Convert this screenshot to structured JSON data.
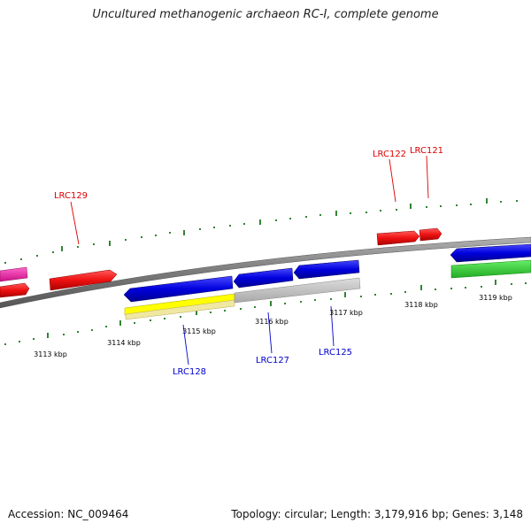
{
  "title": "Uncultured methanogenic archaeon RC-I, complete genome",
  "footer": {
    "accession": "Accession: NC_009464",
    "topology": "Topology: circular; Length: 3,179,916 bp; Genes: 3,148"
  },
  "axis": {
    "tick_labels": [
      "3113 kbp",
      "3114 kbp",
      "3115 kbp",
      "3116 kbp",
      "3117 kbp",
      "3118 kbp",
      "3119 kbp"
    ]
  },
  "gene_labels": [
    {
      "text": "LRC129",
      "strand": "forward",
      "color": "#dd0000"
    },
    {
      "text": "LRC122",
      "strand": "forward",
      "color": "#dd0000"
    },
    {
      "text": "LRC121",
      "strand": "forward",
      "color": "#dd0000"
    },
    {
      "text": "LRC128",
      "strand": "reverse",
      "color": "#0000cc"
    },
    {
      "text": "LRC127",
      "strand": "reverse",
      "color": "#0000cc"
    },
    {
      "text": "LRC125",
      "strand": "reverse",
      "color": "#0000cc"
    }
  ],
  "colors": {
    "forward_gene": "#ee1111",
    "reverse_gene": "#0000dd",
    "rna": "#ee22aa",
    "yellow_feature": "#ffff00",
    "pale_feature": "#f0e8a0",
    "grey_feature": "#c4c4c4",
    "green_feature": "#33cc33",
    "backbone": "#888888",
    "ticks": "#006600"
  }
}
